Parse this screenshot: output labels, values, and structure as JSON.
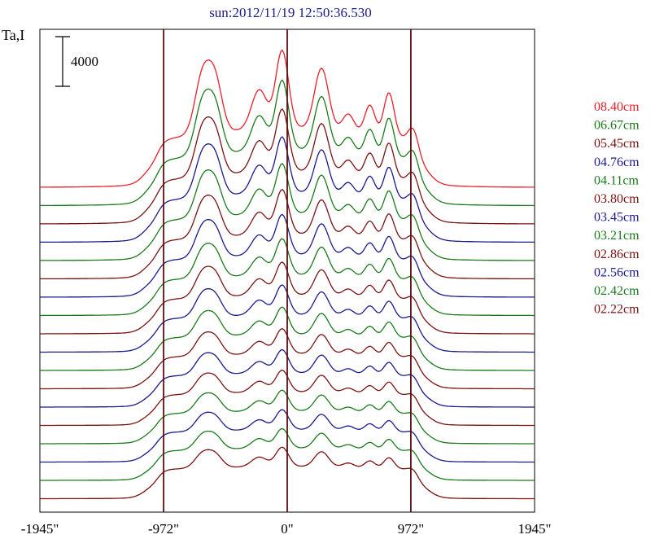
{
  "chart_data": {
    "type": "line",
    "title": "sun:2012/11/19 12:50:36.530",
    "ylabel": "Ta,I",
    "scale_bar_label": "4000",
    "x_ticks": [
      "-1945\"",
      "-972\"",
      "0\"",
      "972\"",
      "1945\""
    ],
    "x_tick_values": [
      -1945,
      -972,
      0,
      972,
      1945
    ],
    "xlim": [
      -1945,
      1945
    ],
    "vertical_markers": [
      -972,
      0,
      972
    ],
    "grid": false,
    "legend_position": "right",
    "colors": {
      "red": "#e8202a",
      "green": "#1a7a1a",
      "maroon": "#7a1212",
      "navy": "#1a1a8c",
      "marker": "#5a1010"
    },
    "series": [
      {
        "name": "08.40cm",
        "color": "#e8202a"
      },
      {
        "name": "06.67cm",
        "color": "#1a7a1a"
      },
      {
        "name": "05.45cm",
        "color": "#7a1212"
      },
      {
        "name": "04.76cm",
        "color": "#1a1a8c"
      },
      {
        "name": "04.11cm",
        "color": "#1a7a1a"
      },
      {
        "name": "03.80cm",
        "color": "#7a1212"
      },
      {
        "name": "03.45cm",
        "color": "#1a1a8c"
      },
      {
        "name": "03.21cm",
        "color": "#1a7a1a"
      },
      {
        "name": "02.86cm",
        "color": "#7a1212"
      },
      {
        "name": "02.56cm",
        "color": "#1a1a8c"
      },
      {
        "name": "02.42cm",
        "color": "#1a7a1a"
      },
      {
        "name": "02.22cm",
        "color": "#7a1212"
      }
    ],
    "unlabeled_curves": [
      {
        "color": "#1a1a8c"
      },
      {
        "color": "#7a1212"
      },
      {
        "color": "#1a7a1a"
      },
      {
        "color": "#1a1a8c"
      },
      {
        "color": "#1a7a1a"
      },
      {
        "color": "#7a1212"
      }
    ]
  }
}
